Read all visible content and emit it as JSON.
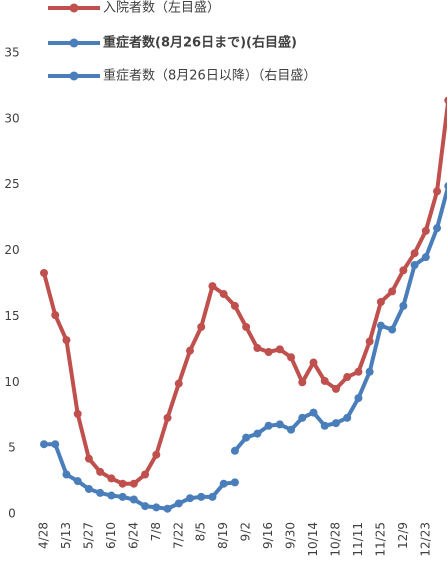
{
  "chart_data": {
    "type": "line",
    "categories": [
      "4/28",
      null,
      "5/13",
      null,
      "5/27",
      null,
      "6/10",
      null,
      "6/24",
      null,
      "7/8",
      null,
      "7/22",
      null,
      "8/5",
      null,
      "8/19",
      null,
      "9/2",
      null,
      "9/16",
      null,
      "9/30",
      null,
      "10/14",
      null,
      "10/28",
      null,
      "11/11",
      null,
      "11/25",
      null,
      "12/9",
      null,
      "12/23",
      null,
      null
    ],
    "series": [
      {
        "name": "入院者数（左目盛）",
        "color": "#c0504d",
        "values": [
          18.3,
          15.1,
          13.2,
          7.6,
          4.2,
          3.2,
          2.7,
          2.3,
          2.3,
          3.0,
          4.5,
          7.3,
          9.9,
          12.4,
          14.2,
          17.3,
          16.7,
          15.8,
          14.2,
          12.6,
          12.3,
          12.5,
          11.9,
          10.0,
          11.5,
          10.1,
          9.5,
          10.4,
          10.8,
          13.1,
          16.1,
          16.9,
          18.5,
          19.8,
          21.5,
          24.5,
          31.4
        ]
      },
      {
        "name": "重症者数(8月26日まで)(右目盛)",
        "color": "#4a7ebb",
        "values": [
          5.3,
          5.3,
          3.0,
          2.5,
          1.9,
          1.6,
          1.4,
          1.3,
          1.1,
          0.6,
          0.5,
          0.4,
          0.8,
          1.2,
          1.3,
          1.3,
          2.3,
          2.4,
          null,
          null,
          null,
          null,
          null,
          null,
          null,
          null,
          null,
          null,
          null,
          null,
          null,
          null,
          null,
          null,
          null,
          null,
          null
        ]
      },
      {
        "name": "重症者数（8月26日以降）（右目盛）",
        "color": "#4a7ebb",
        "values": [
          null,
          null,
          null,
          null,
          null,
          null,
          null,
          null,
          null,
          null,
          null,
          null,
          null,
          null,
          null,
          null,
          null,
          4.8,
          5.8,
          6.1,
          6.7,
          6.8,
          6.4,
          7.3,
          7.7,
          6.7,
          6.9,
          7.3,
          8.8,
          10.8,
          14.3,
          14.0,
          15.8,
          18.9,
          19.5,
          21.7,
          24.9
        ]
      }
    ],
    "ylim": [
      0,
      35
    ],
    "yticks": [
      0,
      5,
      10,
      15,
      20,
      25,
      30,
      35
    ]
  }
}
